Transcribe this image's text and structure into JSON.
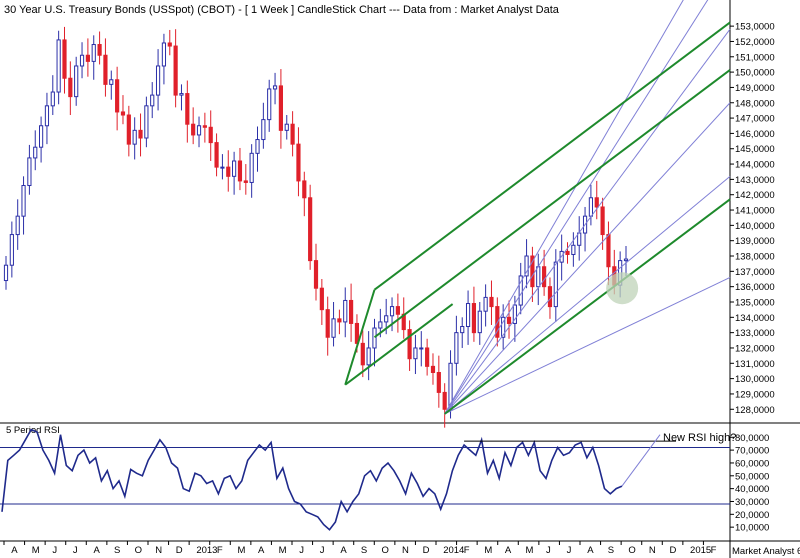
{
  "title": "30 Year U.S. Treasury Bonds (USSpot) (CBOT) -  [ 1 Week ] CandleStick Chart --- Data from : Market Analyst Data",
  "watermark": "Market Analyst 6",
  "colors": {
    "up": "#2b2fa8",
    "down": "#e0202a",
    "pitchfork": "#1e8a2c",
    "fan": "#8080d6",
    "rsi": "#1f2a8c",
    "circle": "#bfd3b8"
  },
  "chart_data": [
    {
      "type": "candlestick",
      "title": "30 Year U.S. Treasury Bonds (USSpot) (CBOT) -  [ 1 Week ] CandleStick Chart --- Data from : Market Analyst Data",
      "y_ticks": [
        "128,0000",
        "129,0000",
        "130,0000",
        "131,0000",
        "132,0000",
        "133,0000",
        "134,0000",
        "135,0000",
        "136,0000",
        "137,0000",
        "138,0000",
        "139,0000",
        "140,0000",
        "141,0000",
        "142,0000",
        "143,0000",
        "144,0000",
        "145,0000",
        "146,0000",
        "147,0000",
        "148,0000",
        "149,0000",
        "150,0000",
        "151,0000",
        "152,0000",
        "153,0000"
      ],
      "ylim": [
        127.3,
        153.4
      ],
      "x_labels": [
        "A",
        "M",
        "J",
        "J",
        "A",
        "S",
        "O",
        "N",
        "D",
        "2013",
        "F",
        "M",
        "A",
        "M",
        "J",
        "J",
        "A",
        "S",
        "O",
        "N",
        "D",
        "2014",
        "F",
        "M",
        "A",
        "M",
        "J",
        "J",
        "A",
        "S",
        "O",
        "N",
        "D",
        "2015",
        "F"
      ],
      "series_close": [
        137.4,
        139.4,
        140.6,
        142.6,
        144.4,
        145.1,
        146.5,
        147.8,
        148.7,
        152.1,
        149.6,
        148.4,
        150.4,
        151.1,
        150.7,
        151.8,
        151.1,
        149.2,
        149.5,
        147.4,
        147.2,
        145.3,
        146.2,
        145.7,
        147.8,
        148.5,
        150.4,
        151.9,
        151.7,
        148.5,
        148.6,
        146.6,
        145.9,
        146.5,
        146.4,
        145.4,
        143.8,
        143.8,
        143.2,
        144.2,
        142.9,
        142.8,
        144.7,
        145.6,
        146.9,
        148.9,
        149.1,
        146.2,
        146.6,
        145.3,
        142.9,
        141.8,
        137.7,
        135.9,
        134.5,
        132.7,
        133.9,
        133.7,
        135.1,
        133.6,
        132.3,
        130.9,
        132.0,
        133.3,
        133.7,
        134.1,
        134.7,
        134.2,
        133.2,
        131.3,
        132.0,
        132.0,
        130.8,
        130.4,
        129.1,
        128.0,
        131.0,
        133.0,
        133.4,
        134.9,
        133.0,
        134.4,
        135.3,
        134.7,
        132.7,
        134.0,
        133.6,
        134.8,
        136.7,
        138.0,
        136.0,
        137.3,
        136.0,
        134.7,
        137.6,
        138.3,
        138.1,
        138.7,
        139.5,
        140.6,
        141.8,
        141.2,
        139.4,
        137.3,
        136.1,
        137.7,
        137.8
      ],
      "series_open": [
        136.4,
        137.4,
        139.4,
        140.6,
        142.6,
        144.4,
        145.1,
        146.5,
        147.8,
        148.7,
        152.1,
        149.6,
        148.4,
        150.4,
        151.1,
        150.7,
        151.8,
        151.1,
        149.2,
        149.5,
        147.4,
        147.2,
        145.3,
        146.2,
        145.7,
        147.8,
        148.5,
        150.4,
        151.9,
        151.7,
        148.5,
        148.6,
        146.6,
        145.9,
        146.5,
        146.4,
        145.4,
        143.8,
        143.8,
        143.2,
        144.2,
        142.9,
        142.8,
        144.7,
        145.6,
        146.9,
        148.9,
        149.1,
        146.2,
        146.6,
        145.3,
        142.9,
        141.8,
        137.7,
        135.9,
        134.5,
        132.7,
        133.9,
        133.7,
        135.1,
        133.6,
        132.3,
        130.9,
        132.0,
        133.3,
        133.7,
        134.1,
        134.7,
        134.2,
        133.2,
        131.3,
        132.0,
        132.0,
        130.8,
        130.4,
        129.1,
        128.0,
        131.0,
        133.0,
        133.4,
        134.9,
        133.0,
        134.4,
        135.3,
        134.7,
        132.7,
        134.0,
        133.6,
        134.8,
        136.7,
        138.0,
        136.0,
        137.3,
        136.0,
        134.7,
        137.6,
        138.3,
        138.1,
        138.7,
        139.5,
        140.6,
        141.8,
        141.2,
        139.4,
        137.3,
        136.1,
        137.7
      ]
    },
    {
      "type": "line",
      "label": "5 Period RSI",
      "y_ticks": [
        "10,0000",
        "20,0000",
        "30,0000",
        "40,0000",
        "50,0000",
        "60,0000",
        "70,0000",
        "80,0000"
      ],
      "ylim": [
        0,
        88
      ],
      "hlines": [
        72,
        28
      ],
      "annotation": "New RSI high?",
      "values": [
        22,
        62,
        66,
        70,
        78,
        86,
        84,
        70,
        62,
        52,
        82,
        58,
        54,
        66,
        70,
        60,
        64,
        46,
        54,
        40,
        46,
        34,
        55,
        52,
        50,
        62,
        70,
        78,
        72,
        60,
        56,
        40,
        38,
        52,
        50,
        44,
        46,
        36,
        48,
        50,
        40,
        46,
        62,
        68,
        74,
        70,
        76,
        48,
        56,
        40,
        30,
        28,
        22,
        20,
        18,
        12,
        8,
        14,
        30,
        22,
        30,
        36,
        50,
        54,
        46,
        56,
        60,
        54,
        46,
        36,
        52,
        44,
        34,
        40,
        36,
        24,
        36,
        54,
        66,
        74,
        70,
        66,
        78,
        52,
        62,
        48,
        68,
        58,
        72,
        76,
        66,
        76,
        54,
        48,
        62,
        72,
        66,
        68,
        74,
        76,
        64,
        72,
        58,
        40,
        36,
        40,
        42
      ]
    }
  ]
}
